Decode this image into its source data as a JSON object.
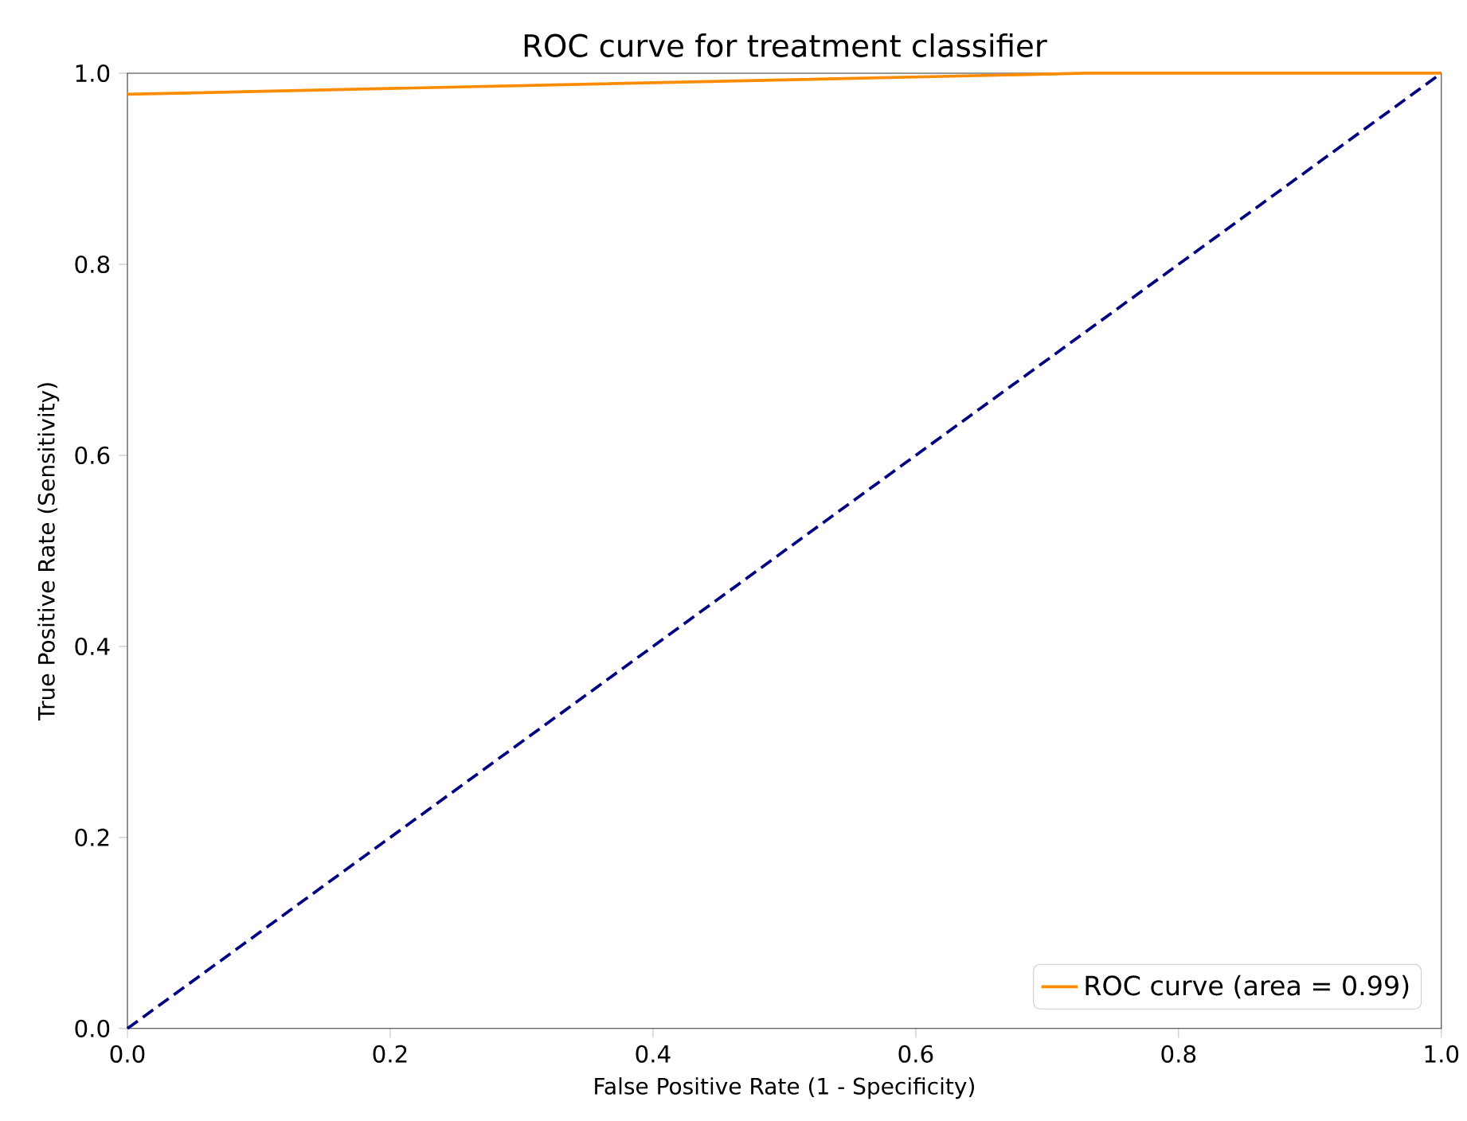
{
  "chart_data": {
    "type": "line",
    "title": "ROC curve for treatment classifier",
    "xlabel": "False Positive Rate (1 - Specificity)",
    "ylabel": "True Positive Rate (Sensitivity)",
    "xlim": [
      0,
      1
    ],
    "ylim": [
      0,
      1
    ],
    "xticks": [
      {
        "value": 0,
        "label": "0.0"
      },
      0.2,
      0.4,
      0.6,
      0.8,
      {
        "value": 1,
        "label": "1.0"
      }
    ],
    "yticks": [
      {
        "value": 0,
        "label": "0.0"
      },
      0.2,
      0.4,
      0.6,
      0.8,
      {
        "value": 1,
        "label": "1.0"
      }
    ],
    "series": [
      {
        "name": "ROC curve (area = 0.99)",
        "color": "#ff8c00",
        "x": [
          0,
          0.73,
          1
        ],
        "values": [
          0.978,
          1,
          1
        ],
        "line_style": "solid"
      },
      {
        "color": "#000080",
        "x": [
          0,
          1
        ],
        "values": [
          0,
          1
        ],
        "line_style": "dashed"
      }
    ],
    "legend": "bottom right",
    "grid": false,
    "marker": "none"
  }
}
